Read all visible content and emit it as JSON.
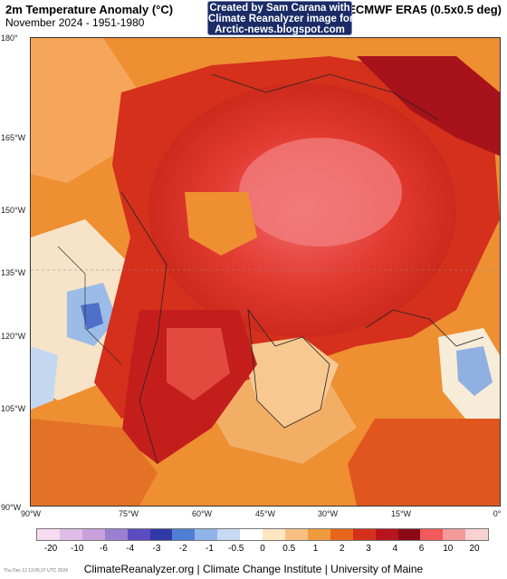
{
  "header": {
    "title": "2m Temperature Anomaly (°C)",
    "subtitle": "November 2024 - 1951-1980",
    "dataset": "ECMWF ERA5 (0.5x0.5 deg)"
  },
  "credit": {
    "line1": "Created by Sam Carana with",
    "line2": "Climate Reanalyzer image for",
    "line3": "Arctic-news.blogspot.com"
  },
  "map": {
    "lat_labels": [
      "180°",
      "165°W",
      "150°W",
      "135°W",
      "120°W",
      "105°W",
      "90°W"
    ],
    "lon_labels": [
      "90°W",
      "75°W",
      "60°W",
      "45°W",
      "30°W",
      "15°W",
      "0°"
    ]
  },
  "legend": {
    "labels": [
      "-20",
      "-10",
      "-6",
      "-4",
      "-3",
      "-2",
      "-1",
      "-0.5",
      "0",
      "0.5",
      "1",
      "2",
      "3",
      "4",
      "6",
      "10",
      "20"
    ],
    "colors": [
      "#f6dcf2",
      "#dfbde8",
      "#c8a0dc",
      "#9b7fd0",
      "#5b4cbf",
      "#2f3aa8",
      "#4f7fd4",
      "#8fb4e8",
      "#c6daf2",
      "#ffffff",
      "#fde6c2",
      "#f7c082",
      "#f09a3e",
      "#e8661c",
      "#d4301c",
      "#b8141c",
      "#8a0a16",
      "#f05a5a",
      "#f49a9a",
      "#f8d2d2"
    ]
  },
  "footer": {
    "credit": "ClimateReanalyzer.org | Climate Change Institute | University of Maine",
    "timestamp": "Thu Dec 12 13:05:37 UTC 2024"
  }
}
